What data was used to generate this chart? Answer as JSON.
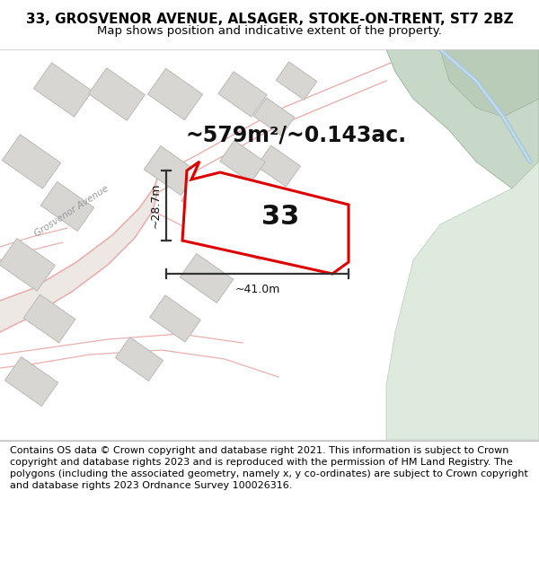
{
  "title_line1": "33, GROSVENOR AVENUE, ALSAGER, STOKE-ON-TRENT, ST7 2BZ",
  "title_line2": "Map shows position and indicative extent of the property.",
  "footer_text": "Contains OS data © Crown copyright and database right 2021. This information is subject to Crown copyright and database rights 2023 and is reproduced with the permission of HM Land Registry. The polygons (including the associated geometry, namely x, y co-ordinates) are subject to Crown copyright and database rights 2023 Ordnance Survey 100026316.",
  "area_label": "~579m²/~0.143ac.",
  "property_number": "33",
  "dim_height": "~28.7m",
  "dim_width": "~41.0m",
  "street_label": "Grosvenor Avenue",
  "map_bg": "#f2f0ed",
  "property_fill": "#ffffff",
  "property_edge": "#dd0000",
  "building_fill": "#d8d6d2",
  "building_edge": "#c0bebb",
  "dim_line_color": "#333333",
  "green_dark": "#c8d8c8",
  "green_light": "#deeade",
  "blue_line": "#a8c8d8",
  "title_fontsize": 11,
  "subtitle_fontsize": 9.5,
  "area_fontsize": 17,
  "number_fontsize": 22,
  "footer_fontsize": 8,
  "road_outline_color": "#e8b0b0",
  "road_fill": "#ede8e4"
}
